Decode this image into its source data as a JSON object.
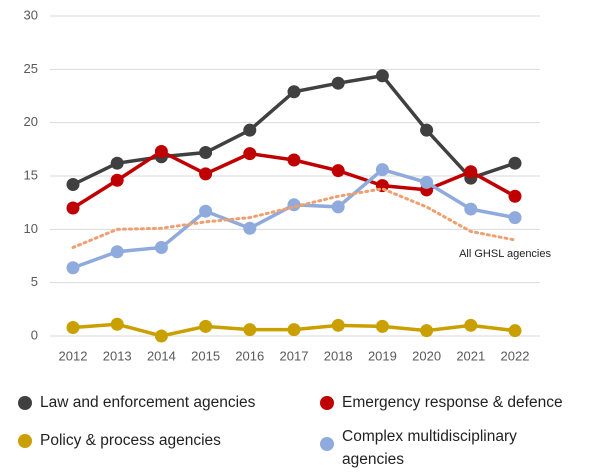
{
  "chart_data": {
    "type": "line",
    "x": [
      2012,
      2013,
      2014,
      2015,
      2016,
      2017,
      2018,
      2019,
      2020,
      2021,
      2022
    ],
    "xlim": [
      2012,
      2022
    ],
    "ylim": [
      0,
      30
    ],
    "yticks": [
      0,
      5,
      10,
      15,
      20,
      25,
      30
    ],
    "grid": true,
    "series": [
      {
        "name": "Law and enforcement agencies",
        "color": "#404040",
        "values": [
          14.2,
          16.2,
          16.8,
          17.2,
          19.3,
          22.9,
          23.7,
          24.4,
          19.3,
          14.8,
          16.2
        ]
      },
      {
        "name": "Emergency response & defence",
        "color": "#c00000",
        "values": [
          12.0,
          14.6,
          17.3,
          15.2,
          17.1,
          16.5,
          15.5,
          14.1,
          13.7,
          15.4,
          13.1
        ]
      },
      {
        "name": "Policy & process agencies",
        "color": "#c9a000",
        "values": [
          0.8,
          1.1,
          0,
          0.9,
          0.6,
          0.6,
          1.0,
          0.9,
          0.5,
          1.0,
          0.5
        ]
      },
      {
        "name": "Complex multidisciplinary agencies",
        "color": "#8faadc",
        "values": [
          6.4,
          7.9,
          8.3,
          11.7,
          10.1,
          12.3,
          12.1,
          15.6,
          14.4,
          11.9,
          11.1
        ]
      },
      {
        "name": "All GHSL agencies",
        "color": "#f0a070",
        "style": "dotted",
        "values": [
          8.3,
          10.0,
          10.1,
          10.7,
          11.1,
          12.1,
          13.1,
          13.8,
          12.1,
          9.8,
          9.0
        ]
      }
    ]
  }
}
